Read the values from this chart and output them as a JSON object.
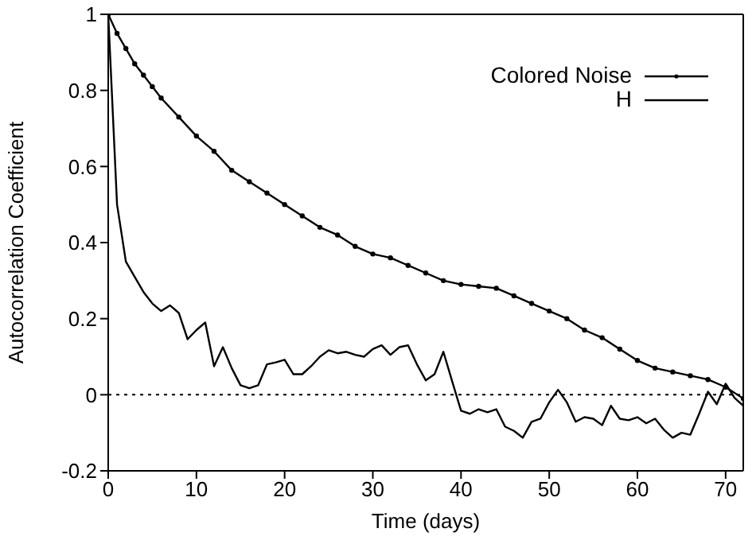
{
  "chart_data": {
    "type": "line",
    "xlabel": "Time (days)",
    "ylabel": "Autocorrelation Coefficient",
    "xlim": [
      0,
      72
    ],
    "xticks": [
      0,
      10,
      20,
      30,
      40,
      50,
      60,
      70
    ],
    "ylim": [
      -0.2,
      1
    ],
    "yticks": [
      -0.2,
      0,
      0.2,
      0.4,
      0.6,
      0.8,
      1
    ],
    "legend": "top right",
    "line_style": "solid",
    "ref_lines": [
      {
        "axis": "y",
        "value": 0,
        "line_style": "dotted",
        "color": "#000000"
      }
    ],
    "series": [
      {
        "name": "Colored Noise",
        "color": "#000000",
        "marker": "circle",
        "x": [
          0,
          1,
          2,
          3,
          4,
          5,
          6,
          8,
          10,
          12,
          14,
          16,
          18,
          20,
          22,
          24,
          26,
          28,
          30,
          32,
          34,
          36,
          38,
          40,
          42,
          44,
          46,
          48,
          50,
          52,
          54,
          56,
          58,
          60,
          62,
          64,
          66,
          68,
          70,
          72
        ],
        "values": [
          1,
          0.95,
          0.91,
          0.87,
          0.84,
          0.81,
          0.78,
          0.73,
          0.68,
          0.64,
          0.59,
          0.56,
          0.53,
          0.5,
          0.47,
          0.44,
          0.42,
          0.39,
          0.37,
          0.36,
          0.34,
          0.32,
          0.3,
          0.29,
          0.285,
          0.28,
          0.26,
          0.24,
          0.22,
          0.2,
          0.17,
          0.15,
          0.12,
          0.09,
          0.07,
          0.06,
          0.05,
          0.04,
          0.02,
          -0.01
        ]
      },
      {
        "name": "H",
        "color": "#000000",
        "marker": "none",
        "x": [
          0,
          1,
          2,
          3,
          4,
          5,
          6,
          7,
          8,
          9,
          10,
          11,
          12,
          13,
          14,
          15,
          16,
          17,
          18,
          19,
          20,
          21,
          22,
          23,
          24,
          25,
          26,
          27,
          28,
          29,
          30,
          31,
          32,
          33,
          34,
          35,
          36,
          37,
          38,
          39,
          40,
          41,
          42,
          43,
          44,
          45,
          46,
          47,
          48,
          49,
          50,
          51,
          52,
          53,
          54,
          55,
          56,
          57,
          58,
          59,
          60,
          61,
          62,
          63,
          64,
          65,
          66,
          67,
          68,
          69,
          70,
          71,
          72
        ],
        "values": [
          1,
          0.5,
          0.35,
          0.31,
          0.27,
          0.24,
          0.22,
          0.235,
          0.215,
          0.146,
          0.17,
          0.19,
          0.075,
          0.125,
          0.07,
          0.025,
          0.017,
          0.025,
          0.08,
          0.085,
          0.092,
          0.054,
          0.054,
          0.075,
          0.1,
          0.117,
          0.109,
          0.113,
          0.105,
          0.1,
          0.12,
          0.13,
          0.105,
          0.125,
          0.13,
          0.08,
          0.038,
          0.054,
          0.113,
          0.035,
          -0.042,
          -0.05,
          -0.038,
          -0.046,
          -0.038,
          -0.084,
          -0.095,
          -0.113,
          -0.071,
          -0.063,
          -0.02,
          0.013,
          -0.02,
          -0.071,
          -0.059,
          -0.063,
          -0.08,
          -0.029,
          -0.063,
          -0.067,
          -0.059,
          -0.075,
          -0.063,
          -0.092,
          -0.113,
          -0.1,
          -0.105,
          -0.05,
          0.008,
          -0.025,
          0.029,
          -0.008,
          -0.029
        ]
      }
    ]
  }
}
